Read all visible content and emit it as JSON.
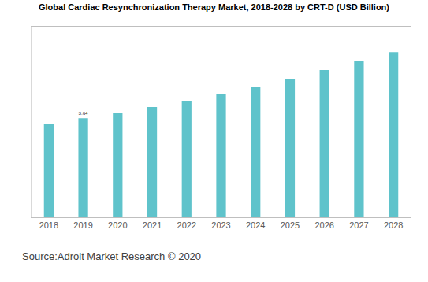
{
  "chart_data": {
    "type": "bar",
    "title": "Global Cardiac Resynchronization Therapy Market, 2018-2028 by CRT-D (USD Billion)",
    "source": "Source:Adroit Market Research © 2020",
    "categories": [
      "2018",
      "2019",
      "2020",
      "2021",
      "2022",
      "2023",
      "2024",
      "2025",
      "2026",
      "2027",
      "2028"
    ],
    "values": [
      3.44,
      3.64,
      3.84,
      4.05,
      4.28,
      4.54,
      4.8,
      5.09,
      5.41,
      5.75,
      6.07
    ],
    "value_labels": [
      null,
      "3.64",
      null,
      null,
      null,
      null,
      null,
      null,
      null,
      null,
      null
    ],
    "color": "#5fc3cb",
    "ylim": [
      0,
      7
    ],
    "yticks": [],
    "grid": false,
    "tick_labels": "x"
  }
}
